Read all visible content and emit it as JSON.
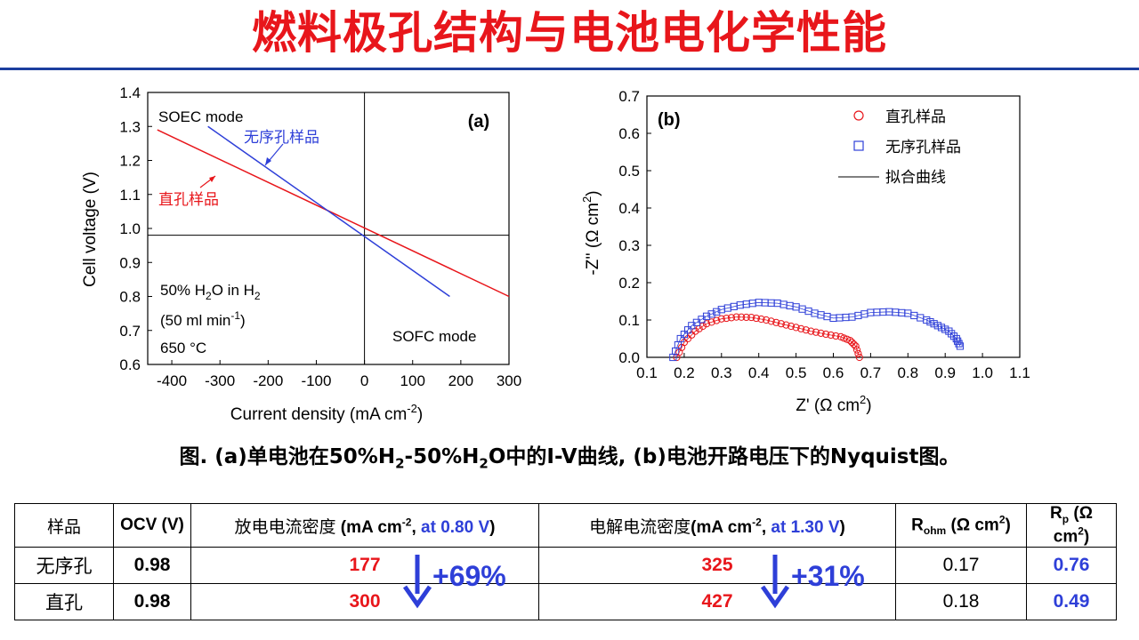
{
  "title": "燃料极孔结构与电池电化学性能",
  "colors": {
    "title": "#e8161b",
    "rule": "#1c3e9e",
    "red_series": "#e8161b",
    "blue_series": "#2e3fd8",
    "accent_blue": "#2e3fd8"
  },
  "chart_data": [
    {
      "type": "line",
      "panel_label": "(a)",
      "xlabel": "Current density (mA cm",
      "xlabel_sup": "-2",
      "xlabel_end": ")",
      "ylabel": "Cell voltage (V)",
      "xlim": [
        -450,
        300
      ],
      "ylim": [
        0.6,
        1.4
      ],
      "xticks": [
        -400,
        -300,
        -200,
        -100,
        0,
        100,
        200,
        300
      ],
      "yticks": [
        0.6,
        0.7,
        0.8,
        0.9,
        1.0,
        1.1,
        1.2,
        1.3,
        1.4
      ],
      "ocv_line": 0.98,
      "zero_line": 0,
      "series": [
        {
          "name": "直孔样品",
          "color": "#e8161b",
          "x": [
            -430,
            300
          ],
          "y": [
            1.29,
            0.8
          ]
        },
        {
          "name": "无序孔样品",
          "color": "#2e3fd8",
          "x": [
            -325,
            177
          ],
          "y": [
            1.3,
            0.8
          ]
        }
      ],
      "annotations": {
        "soec_mode": "SOEC mode",
        "sofc_mode": "SOFC mode",
        "red_label": "直孔样品",
        "blue_label": "无序孔样品",
        "cond1_a": "50% H",
        "cond1_sub1": "2",
        "cond1_b": "O in H",
        "cond1_sub2": "2",
        "cond2_a": "(50 ml min",
        "cond2_sup": "-1",
        "cond2_b": ")",
        "cond3": "650 °C"
      }
    },
    {
      "type": "scatter",
      "panel_label": "(b)",
      "xlabel": "Z' (Ω cm",
      "xlabel_sup": "2",
      "xlabel_end": ")",
      "ylabel": "-Z'' (Ω cm",
      "ylabel_sup": "2",
      "ylabel_end": ")",
      "xlim": [
        0.1,
        1.1
      ],
      "ylim": [
        0.0,
        0.7
      ],
      "xticks": [
        0.1,
        0.2,
        0.3,
        0.4,
        0.5,
        0.6,
        0.7,
        0.8,
        0.9,
        1.0,
        1.1
      ],
      "yticks": [
        0.0,
        0.1,
        0.2,
        0.3,
        0.4,
        0.5,
        0.6,
        0.7
      ],
      "legend": [
        "直孔样品",
        "无序孔样品",
        "拟合曲线"
      ],
      "series": [
        {
          "name": "直孔样品",
          "marker": "circle",
          "color": "#e8161b",
          "x": [
            0.18,
            0.2,
            0.23,
            0.26,
            0.3,
            0.34,
            0.38,
            0.42,
            0.46,
            0.5,
            0.54,
            0.58,
            0.62,
            0.645,
            0.66,
            0.67
          ],
          "y": [
            0.0,
            0.04,
            0.07,
            0.09,
            0.103,
            0.108,
            0.107,
            0.1,
            0.09,
            0.08,
            0.07,
            0.062,
            0.055,
            0.045,
            0.03,
            0.0
          ]
        },
        {
          "name": "无序孔样品",
          "marker": "square",
          "color": "#2e3fd8",
          "x": [
            0.17,
            0.19,
            0.22,
            0.26,
            0.3,
            0.35,
            0.4,
            0.45,
            0.5,
            0.55,
            0.6,
            0.65,
            0.7,
            0.75,
            0.8,
            0.85,
            0.88,
            0.91,
            0.93,
            0.94
          ],
          "y": [
            0.0,
            0.05,
            0.085,
            0.11,
            0.128,
            0.14,
            0.147,
            0.145,
            0.135,
            0.118,
            0.105,
            0.108,
            0.12,
            0.122,
            0.118,
            0.1,
            0.085,
            0.07,
            0.05,
            0.03
          ]
        }
      ]
    }
  ],
  "caption": {
    "p1": "图. (a)单电池在50%H",
    "sub1": "2",
    "p2": "-50%H",
    "sub2": "2",
    "p3": "O中的I-V曲线, (b)电池开路电压下的Nyquist图。"
  },
  "table": {
    "headers": {
      "sample": "样品",
      "ocv": "OCV (V)",
      "discharge_a": "放电电流密度",
      "discharge_b": " (mA cm",
      "discharge_sup": "-2",
      "discharge_c": ", ",
      "discharge_hl": "at 0.80 V",
      "discharge_end": ")",
      "electrolysis_a": "电解电流密度",
      "electrolysis_b": "(mA cm",
      "electrolysis_sup": "-2",
      "electrolysis_c": ", ",
      "electrolysis_hl": "at 1.30 V",
      "electrolysis_end": ")",
      "rohm_a": "R",
      "rohm_sub": "ohm",
      "rohm_b": " (Ω cm",
      "rohm_sup": "2",
      "rohm_c": ")",
      "rp_a": "R",
      "rp_sub": "p",
      "rp_b": " (Ω cm",
      "rp_sup": "2",
      "rp_c": ")"
    },
    "rows": [
      {
        "sample": "无序孔",
        "ocv": "0.98",
        "discharge": "177",
        "electrolysis": "325",
        "rohm": "0.17",
        "rp": "0.76"
      },
      {
        "sample": "直孔",
        "ocv": "0.98",
        "discharge": "300",
        "electrolysis": "427",
        "rohm": "0.18",
        "rp": "0.49"
      }
    ],
    "discharge_gain": "+69%",
    "electrolysis_gain": "+31%"
  }
}
